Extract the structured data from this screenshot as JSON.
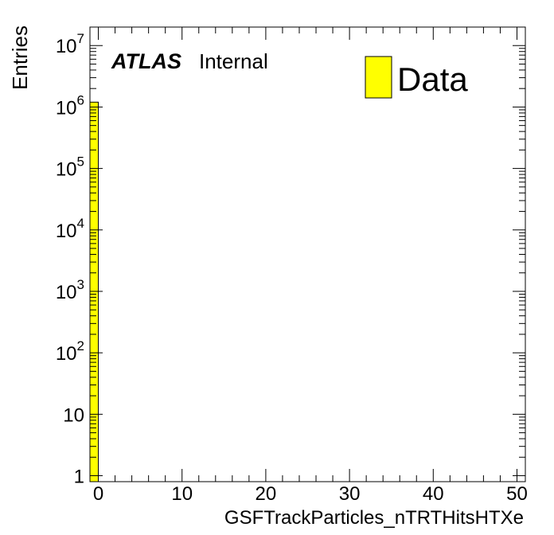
{
  "chart_data": {
    "type": "bar",
    "title": "",
    "xlabel": "GSFTrackParticles_nTRTHitsHTXe",
    "ylabel": "Entries",
    "y_scale": "log",
    "xlim": [
      -1,
      51
    ],
    "ylim": [
      0.8,
      20000000
    ],
    "x_ticks": [
      0,
      10,
      20,
      30,
      40,
      50
    ],
    "x_tick_labels": [
      "0",
      "10",
      "20",
      "30",
      "40",
      "50"
    ],
    "y_ticks": [
      1,
      10,
      100,
      1000,
      10000,
      100000,
      1000000,
      10000000
    ],
    "y_tick_labels": [
      {
        "base": "1",
        "exp": ""
      },
      {
        "base": "10",
        "exp": ""
      },
      {
        "base": "10",
        "exp": "2"
      },
      {
        "base": "10",
        "exp": "3"
      },
      {
        "base": "10",
        "exp": "4"
      },
      {
        "base": "10",
        "exp": "5"
      },
      {
        "base": "10",
        "exp": "6"
      },
      {
        "base": "10",
        "exp": "7"
      }
    ],
    "series": [
      {
        "name": "Data",
        "color": "#ffff00",
        "bins": [
          {
            "x_low": -1,
            "x_high": 0,
            "value": 1200000
          }
        ]
      }
    ],
    "legend_position": "top-right",
    "grid": false
  },
  "annotation": {
    "experiment": "ATLAS",
    "status": "Internal"
  }
}
